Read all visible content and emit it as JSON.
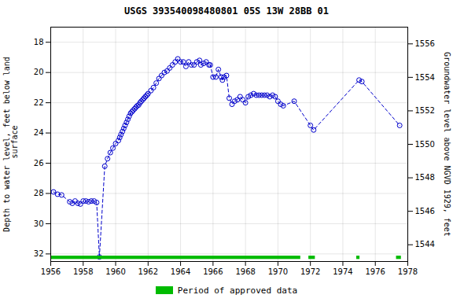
{
  "chart_data": {
    "type": "line",
    "title": "USGS 393540098480801 05S 13W 28BB  01",
    "ylabel": "Depth to water level, feet below land\n surface",
    "y2label": "Groundwater level above NGVD 1929, feet",
    "xlim": [
      1956,
      1978
    ],
    "ylim": [
      32.5,
      17.0
    ],
    "y2lim": [
      1543.0,
      1557.0
    ],
    "xticks": [
      1956,
      1958,
      1960,
      1962,
      1964,
      1966,
      1968,
      1970,
      1972,
      1974,
      1976,
      1978
    ],
    "yticks": [
      18,
      20,
      22,
      24,
      26,
      28,
      30,
      32
    ],
    "y2ticks": [
      1544,
      1546,
      1548,
      1550,
      1552,
      1554,
      1556
    ],
    "grid": true,
    "legend": "bottom",
    "color": "#0000cc",
    "line_style": "dashed",
    "marker": "open circle",
    "x": [
      1956.17,
      1956.42,
      1956.67,
      1957.17,
      1957.33,
      1957.5,
      1957.67,
      1957.83,
      1958.0,
      1958.17,
      1958.33,
      1958.5,
      1958.67,
      1958.83,
      1959.0,
      1959.33,
      1959.5,
      1959.67,
      1959.83,
      1960.0,
      1960.17,
      1960.25,
      1960.33,
      1960.42,
      1960.5,
      1960.58,
      1960.67,
      1960.75,
      1960.83,
      1960.92,
      1961.0,
      1961.08,
      1961.17,
      1961.25,
      1961.33,
      1961.42,
      1961.5,
      1961.58,
      1961.67,
      1961.75,
      1961.83,
      1961.92,
      1962.0,
      1962.17,
      1962.33,
      1962.5,
      1962.67,
      1962.83,
      1963.0,
      1963.17,
      1963.33,
      1963.5,
      1963.67,
      1963.83,
      1964.0,
      1964.17,
      1964.33,
      1964.5,
      1964.67,
      1964.83,
      1965.0,
      1965.17,
      1965.25,
      1965.42,
      1965.58,
      1965.75,
      1965.83,
      1966.0,
      1966.17,
      1966.33,
      1966.5,
      1966.58,
      1966.67,
      1966.83,
      1967.0,
      1967.17,
      1967.33,
      1967.5,
      1967.67,
      1967.83,
      1968.0,
      1968.17,
      1968.33,
      1968.5,
      1968.67,
      1968.83,
      1969.0,
      1969.17,
      1969.33,
      1969.5,
      1969.67,
      1969.83,
      1970.0,
      1970.17,
      1970.33,
      1971.0,
      1972.0,
      1972.2,
      1975.0,
      1975.17,
      1977.5
    ],
    "values": [
      27.9,
      28.05,
      28.1,
      28.55,
      28.65,
      28.5,
      28.65,
      28.7,
      28.5,
      28.5,
      28.55,
      28.5,
      28.5,
      28.6,
      32.2,
      26.2,
      25.7,
      25.3,
      25.0,
      24.7,
      24.5,
      24.3,
      24.1,
      23.9,
      23.7,
      23.5,
      23.3,
      23.1,
      22.9,
      22.7,
      22.6,
      22.5,
      22.4,
      22.3,
      22.2,
      22.15,
      22.0,
      21.9,
      21.8,
      21.7,
      21.6,
      21.5,
      21.4,
      21.2,
      21.0,
      20.7,
      20.4,
      20.2,
      20.0,
      19.9,
      19.7,
      19.5,
      19.3,
      19.1,
      19.3,
      19.3,
      19.6,
      19.3,
      19.5,
      19.5,
      19.3,
      19.2,
      19.5,
      19.4,
      19.3,
      19.5,
      19.5,
      20.3,
      20.3,
      19.8,
      20.3,
      20.5,
      20.3,
      20.2,
      21.7,
      22.1,
      21.9,
      21.8,
      21.6,
      21.8,
      22.0,
      21.6,
      21.5,
      21.4,
      21.5,
      21.5,
      21.5,
      21.5,
      21.5,
      21.6,
      21.5,
      21.6,
      21.9,
      22.1,
      22.2,
      21.9,
      23.5,
      23.8,
      20.5,
      20.6,
      23.5
    ],
    "approved": {
      "name": "Period of approved data",
      "color": "#00bb00",
      "segments": [
        [
          1956.0,
          1971.4
        ],
        [
          1971.9,
          1972.3
        ],
        [
          1974.85,
          1975.05
        ],
        [
          1977.3,
          1977.6
        ]
      ],
      "y": 32.25,
      "height": 0.22
    }
  }
}
